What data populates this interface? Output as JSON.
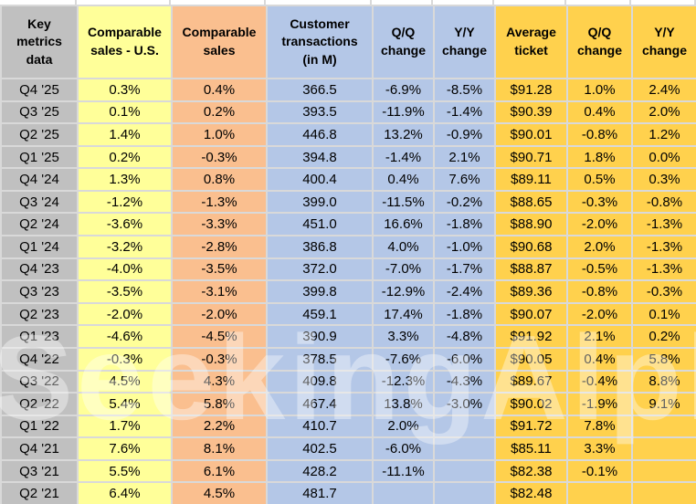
{
  "chart_data": {
    "type": "table",
    "title": "Key metrics data",
    "columns": [
      "Key\nmetrics\ndata",
      "Comparable\nsales - U.S.",
      "Comparable\nsales",
      "Customer\ntransactions\n(in M)",
      "Q/Q\nchange",
      "Y/Y\nchange",
      "Average\nticket",
      "Q/Q\nchange",
      "Y/Y\nchange"
    ],
    "rows": [
      [
        "Q4 '25",
        "0.3%",
        "0.4%",
        "366.5",
        "-6.9%",
        "-8.5%",
        "$91.28",
        "1.0%",
        "2.4%"
      ],
      [
        "Q3 '25",
        "0.1%",
        "0.2%",
        "393.5",
        "-11.9%",
        "-1.4%",
        "$90.39",
        "0.4%",
        "2.0%"
      ],
      [
        "Q2 '25",
        "1.4%",
        "1.0%",
        "446.8",
        "13.2%",
        "-0.9%",
        "$90.01",
        "-0.8%",
        "1.2%"
      ],
      [
        "Q1 '25",
        "0.2%",
        "-0.3%",
        "394.8",
        "-1.4%",
        "2.1%",
        "$90.71",
        "1.8%",
        "0.0%"
      ],
      [
        "Q4 '24",
        "1.3%",
        "0.8%",
        "400.4",
        "0.4%",
        "7.6%",
        "$89.11",
        "0.5%",
        "0.3%"
      ],
      [
        "Q3 '24",
        "-1.2%",
        "-1.3%",
        "399.0",
        "-11.5%",
        "-0.2%",
        "$88.65",
        "-0.3%",
        "-0.8%"
      ],
      [
        "Q2 '24",
        "-3.6%",
        "-3.3%",
        "451.0",
        "16.6%",
        "-1.8%",
        "$88.90",
        "-2.0%",
        "-1.3%"
      ],
      [
        "Q1 '24",
        "-3.2%",
        "-2.8%",
        "386.8",
        "4.0%",
        "-1.0%",
        "$90.68",
        "2.0%",
        "-1.3%"
      ],
      [
        "Q4 '23",
        "-4.0%",
        "-3.5%",
        "372.0",
        "-7.0%",
        "-1.7%",
        "$88.87",
        "-0.5%",
        "-1.3%"
      ],
      [
        "Q3 '23",
        "-3.5%",
        "-3.1%",
        "399.8",
        "-12.9%",
        "-2.4%",
        "$89.36",
        "-0.8%",
        "-0.3%"
      ],
      [
        "Q2 '23",
        "-2.0%",
        "-2.0%",
        "459.1",
        "17.4%",
        "-1.8%",
        "$90.07",
        "-2.0%",
        "0.1%"
      ],
      [
        "Q1 '23",
        "-4.6%",
        "-4.5%",
        "390.9",
        "3.3%",
        "-4.8%",
        "$91.92",
        "2.1%",
        "0.2%"
      ],
      [
        "Q4 '22",
        "-0.3%",
        "-0.3%",
        "378.5",
        "-7.6%",
        "-6.0%",
        "$90.05",
        "0.4%",
        "5.8%"
      ],
      [
        "Q3 '22",
        "4.5%",
        "4.3%",
        "409.8",
        "-12.3%",
        "-4.3%",
        "$89.67",
        "-0.4%",
        "8.8%"
      ],
      [
        "Q2 '22",
        "5.4%",
        "5.8%",
        "467.4",
        "13.8%",
        "-3.0%",
        "$90.02",
        "-1.9%",
        "9.1%"
      ],
      [
        "Q1 '22",
        "1.7%",
        "2.2%",
        "410.7",
        "2.0%",
        "",
        "$91.72",
        "7.8%",
        ""
      ],
      [
        "Q4 '21",
        "7.6%",
        "8.1%",
        "402.5",
        "-6.0%",
        "",
        "$85.11",
        "3.3%",
        ""
      ],
      [
        "Q3 '21",
        "5.5%",
        "6.1%",
        "428.2",
        "-11.1%",
        "",
        "$82.38",
        "-0.1%",
        ""
      ],
      [
        "Q2 '21",
        "6.4%",
        "4.5%",
        "481.7",
        "",
        "",
        "$82.48",
        "",
        ""
      ]
    ]
  },
  "colors": {
    "label_gray": "#c0c0c0",
    "yellow": "#ffff99",
    "orange": "#fabf8f",
    "blue": "#b4c7e7",
    "gold": "#ffd14d",
    "gridline": "#d9d9d9"
  },
  "watermark": {
    "text": "SeekingAlpha"
  }
}
